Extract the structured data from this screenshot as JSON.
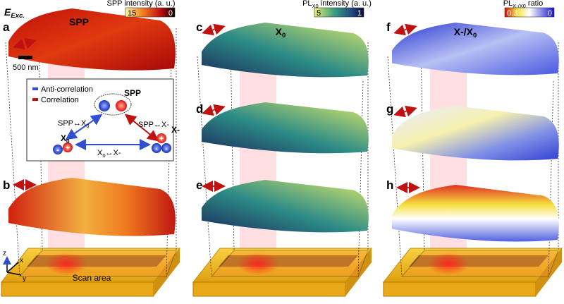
{
  "panel_labels": [
    "a",
    "b",
    "c",
    "d",
    "e",
    "f",
    "g",
    "h"
  ],
  "excitation": {
    "main": "E",
    "sub": "Exc."
  },
  "columns": [
    {
      "title": {
        "main": "SPP"
      },
      "colorbar": {
        "label": {
          "main": "SPP intensity (a. u.)"
        },
        "left": 15,
        "right": 0
      }
    },
    {
      "title": {
        "main": "X",
        "sub": "0"
      },
      "colorbar": {
        "label": {
          "main": "PL",
          "sub": "X0",
          "rest": " intensity (a. u.)"
        },
        "left": 5,
        "right": 1
      }
    },
    {
      "title": {
        "main": "X-/X",
        "sub": "0"
      },
      "colorbar": {
        "label": {
          "main": "PL",
          "sub": "X-/X0",
          "rest": " ratio"
        },
        "left": 0.3,
        "right": 0
      }
    }
  ],
  "scale_bar": "500 nm",
  "legend": [
    "Anti-correlation",
    "Correlation"
  ],
  "diagram": {
    "spp": "SPP",
    "spp_x0": {
      "main": "SPP↔X",
      "sub": "0"
    },
    "spp_xm": {
      "main": "SPP↔X-"
    },
    "x0": {
      "main": "X",
      "sub": "0"
    },
    "xm": {
      "main": "X-"
    },
    "x0_xm": {
      "main": "X",
      "sub": "0",
      "rest": "↔X-"
    },
    "plus": "+",
    "minus": "-"
  },
  "scan_area": "Scan area",
  "axes": [
    "z",
    "x",
    "y"
  ]
}
